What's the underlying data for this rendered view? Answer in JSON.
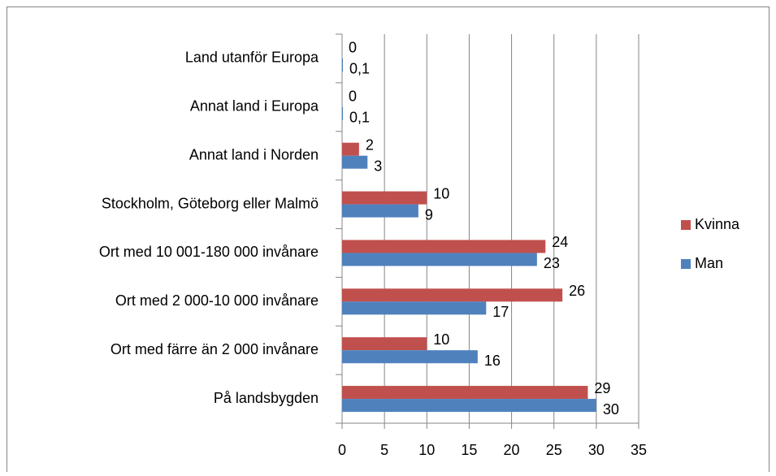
{
  "chart_data": {
    "type": "bar",
    "orientation": "horizontal",
    "categories": [
      "Land utanför Europa",
      "Annat land i Europa",
      "Annat land i Norden",
      "Stockholm, Göteborg eller Malmö",
      "Ort med 10 001-180 000 invånare",
      "Ort med 2 000-10 000 invånare",
      "Ort med färre än 2 000 invånare",
      "På landsbygden"
    ],
    "series": [
      {
        "name": "Kvinna",
        "color": "#c0504d",
        "values": [
          0,
          0,
          2,
          10,
          24,
          26,
          10,
          29
        ]
      },
      {
        "name": "Man",
        "color": "#4f81bd",
        "values": [
          0.1,
          0.1,
          3,
          9,
          23,
          17,
          16,
          30
        ],
        "value_labels": [
          "0,1",
          "0,1",
          "3",
          "9",
          "23",
          "17",
          "16",
          "30"
        ]
      }
    ],
    "xlim": [
      0,
      35
    ],
    "xticks": [
      0,
      5,
      10,
      15,
      20,
      25,
      30,
      35
    ],
    "grid": true,
    "legend": "right"
  }
}
